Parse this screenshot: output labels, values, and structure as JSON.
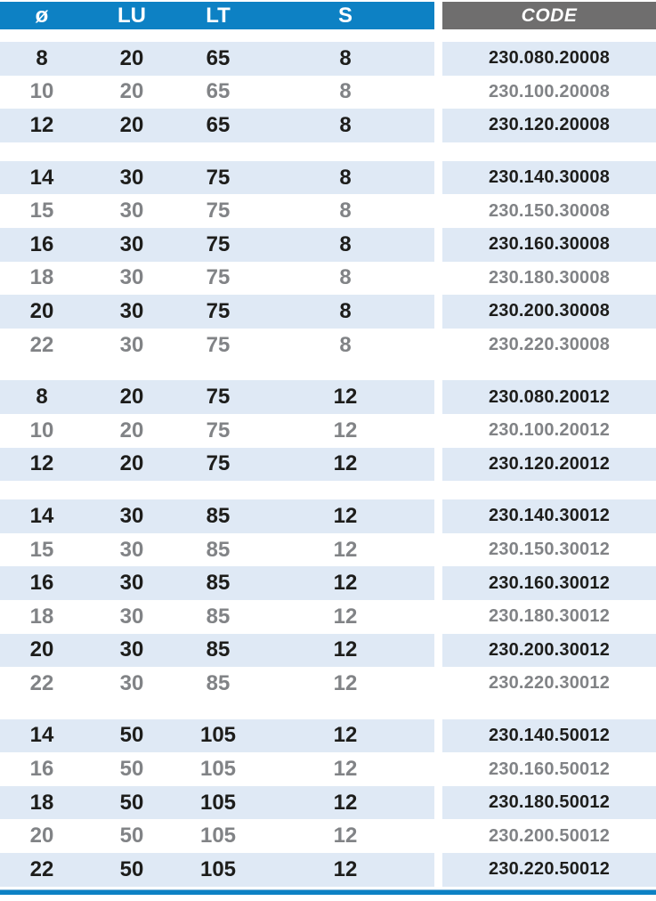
{
  "table": {
    "columns": [
      "ø",
      "LU",
      "LT",
      "S",
      "CODE"
    ],
    "groups": [
      {
        "rows": [
          {
            "d": "8",
            "lu": "20",
            "lt": "65",
            "s": "8",
            "code": "230.080.20008"
          },
          {
            "d": "10",
            "lu": "20",
            "lt": "65",
            "s": "8",
            "code": "230.100.20008"
          },
          {
            "d": "12",
            "lu": "20",
            "lt": "65",
            "s": "8",
            "code": "230.120.20008"
          }
        ]
      },
      {
        "rows": [
          {
            "d": "14",
            "lu": "30",
            "lt": "75",
            "s": "8",
            "code": "230.140.30008"
          },
          {
            "d": "15",
            "lu": "30",
            "lt": "75",
            "s": "8",
            "code": "230.150.30008"
          },
          {
            "d": "16",
            "lu": "30",
            "lt": "75",
            "s": "8",
            "code": "230.160.30008"
          },
          {
            "d": "18",
            "lu": "30",
            "lt": "75",
            "s": "8",
            "code": "230.180.30008"
          },
          {
            "d": "20",
            "lu": "30",
            "lt": "75",
            "s": "8",
            "code": "230.200.30008"
          },
          {
            "d": "22",
            "lu": "30",
            "lt": "75",
            "s": "8",
            "code": "230.220.30008"
          }
        ]
      },
      {
        "rows": [
          {
            "d": "8",
            "lu": "20",
            "lt": "75",
            "s": "12",
            "code": "230.080.20012"
          },
          {
            "d": "10",
            "lu": "20",
            "lt": "75",
            "s": "12",
            "code": "230.100.20012"
          },
          {
            "d": "12",
            "lu": "20",
            "lt": "75",
            "s": "12",
            "code": "230.120.20012"
          }
        ]
      },
      {
        "rows": [
          {
            "d": "14",
            "lu": "30",
            "lt": "85",
            "s": "12",
            "code": "230.140.30012"
          },
          {
            "d": "15",
            "lu": "30",
            "lt": "85",
            "s": "12",
            "code": "230.150.30012"
          },
          {
            "d": "16",
            "lu": "30",
            "lt": "85",
            "s": "12",
            "code": "230.160.30012"
          },
          {
            "d": "18",
            "lu": "30",
            "lt": "85",
            "s": "12",
            "code": "230.180.30012"
          },
          {
            "d": "20",
            "lu": "30",
            "lt": "85",
            "s": "12",
            "code": "230.200.30012"
          },
          {
            "d": "22",
            "lu": "30",
            "lt": "85",
            "s": "12",
            "code": "230.220.30012"
          }
        ]
      },
      {
        "rows": [
          {
            "d": "14",
            "lu": "50",
            "lt": "105",
            "s": "12",
            "code": "230.140.50012"
          },
          {
            "d": "16",
            "lu": "50",
            "lt": "105",
            "s": "12",
            "code": "230.160.50012"
          },
          {
            "d": "18",
            "lu": "50",
            "lt": "105",
            "s": "12",
            "code": "230.180.50012"
          },
          {
            "d": "20",
            "lu": "50",
            "lt": "105",
            "s": "12",
            "code": "230.200.50012"
          },
          {
            "d": "22",
            "lu": "50",
            "lt": "105",
            "s": "12",
            "code": "230.220.50012"
          }
        ]
      }
    ]
  },
  "colors": {
    "header_blue": "#0d81c4",
    "code_header_gray": "#6f6e6e",
    "row_highlight_blue": "#dfe9f5",
    "text_dark": "#1d1d1b",
    "text_gray": "#818386",
    "bottom_bar_blue": "#0d81c4"
  }
}
